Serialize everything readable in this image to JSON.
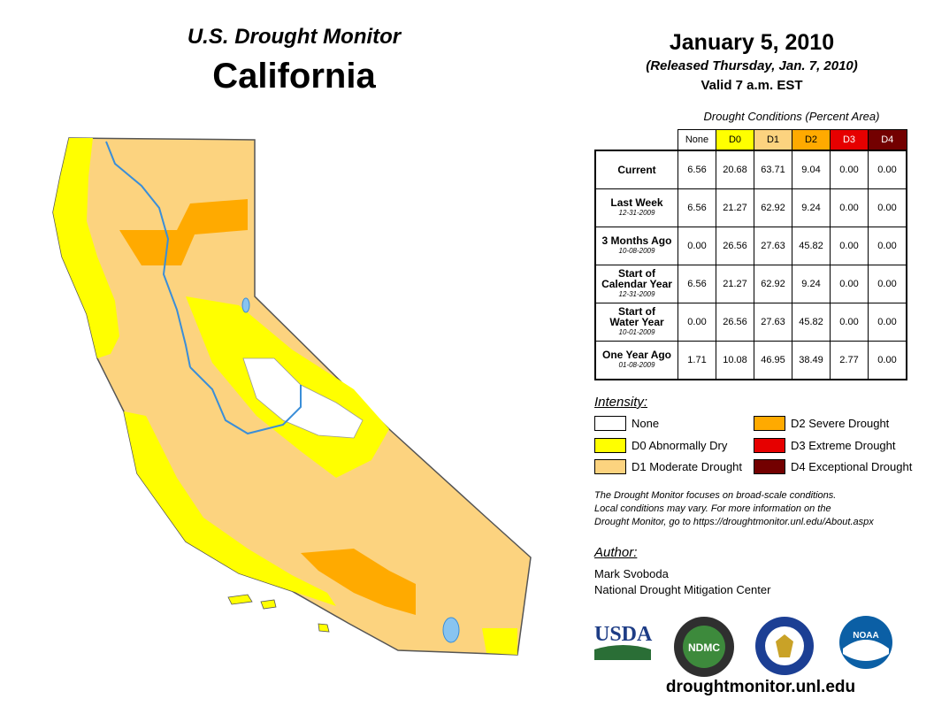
{
  "header": {
    "subtitle": "U.S. Drought Monitor",
    "state": "California",
    "date": "January 5, 2010",
    "released": "(Released Thursday, Jan. 7, 2010)",
    "valid": "Valid 7 a.m. EST"
  },
  "table": {
    "title": "Drought Conditions (Percent Area)",
    "columns": [
      {
        "label": "None",
        "color": "#ffffff",
        "text": "#000000"
      },
      {
        "label": "D0",
        "color": "#ffff00",
        "text": "#000000"
      },
      {
        "label": "D1",
        "color": "#fcd37f",
        "text": "#000000"
      },
      {
        "label": "D2",
        "color": "#ffaa00",
        "text": "#000000"
      },
      {
        "label": "D3",
        "color": "#e60000",
        "text": "#ffffff"
      },
      {
        "label": "D4",
        "color": "#730000",
        "text": "#ffffff"
      }
    ],
    "rows": [
      {
        "label": "Current",
        "label2": "",
        "date": "",
        "values": [
          "6.56",
          "20.68",
          "63.71",
          "9.04",
          "0.00",
          "0.00"
        ]
      },
      {
        "label": "Last Week",
        "label2": "",
        "date": "12-31-2009",
        "values": [
          "6.56",
          "21.27",
          "62.92",
          "9.24",
          "0.00",
          "0.00"
        ]
      },
      {
        "label": "3 Months Ago",
        "label2": "",
        "date": "10-08-2009",
        "values": [
          "0.00",
          "26.56",
          "27.63",
          "45.82",
          "0.00",
          "0.00"
        ]
      },
      {
        "label": "Start of",
        "label2": "Calendar Year",
        "date": "12-31-2009",
        "values": [
          "6.56",
          "21.27",
          "62.92",
          "9.24",
          "0.00",
          "0.00"
        ]
      },
      {
        "label": "Start of",
        "label2": "Water Year",
        "date": "10-01-2009",
        "values": [
          "0.00",
          "26.56",
          "27.63",
          "45.82",
          "0.00",
          "0.00"
        ]
      },
      {
        "label": "One Year Ago",
        "label2": "",
        "date": "01-08-2009",
        "values": [
          "1.71",
          "10.08",
          "46.95",
          "38.49",
          "2.77",
          "0.00"
        ]
      }
    ]
  },
  "legend": {
    "title": "Intensity:",
    "items": [
      {
        "label": "None",
        "color": "#ffffff"
      },
      {
        "label": "D0 Abnormally Dry",
        "color": "#ffff00"
      },
      {
        "label": "D1 Moderate Drought",
        "color": "#fcd37f"
      },
      {
        "label": "D2 Severe Drought",
        "color": "#ffaa00"
      },
      {
        "label": "D3 Extreme Drought",
        "color": "#e60000"
      },
      {
        "label": "D4 Exceptional Drought",
        "color": "#730000"
      }
    ]
  },
  "note": {
    "line1": "The Drought Monitor focuses on broad-scale conditions.",
    "line2": "Local conditions may vary. For more information on the",
    "line3": "Drought Monitor, go to https://droughtmonitor.unl.edu/About.aspx"
  },
  "author": {
    "title": "Author:",
    "name": "Mark Svoboda",
    "org": "National Drought Mitigation Center"
  },
  "logos": {
    "usda": "USDA",
    "ndmc": "NDMC",
    "noaa": "NOAA"
  },
  "site": "droughtmonitor.unl.edu"
}
